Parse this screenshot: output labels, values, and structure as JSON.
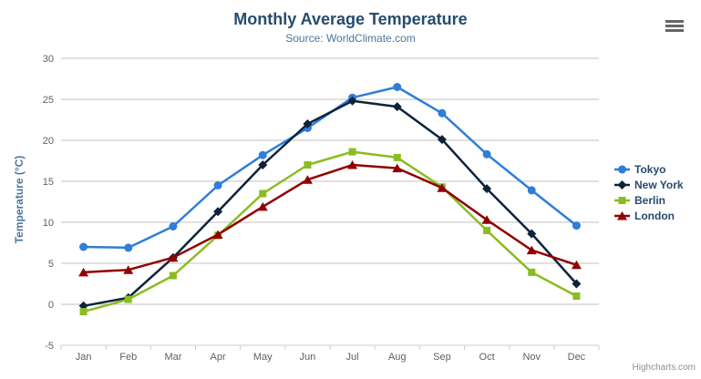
{
  "header": {
    "title": "Monthly Average Temperature",
    "subtitle": "Source: WorldClimate.com"
  },
  "credits": "Highcharts.com",
  "icons": {
    "context_menu": "hamburger"
  },
  "colors": {
    "background": "#ffffff",
    "title": "#274b6d",
    "subtitle": "#4d759e",
    "axis_title": "#4d759e",
    "tick_label": "#606060",
    "grid": "#c0c0c0",
    "axis_line": "#c0d0e0",
    "legend_text": "#274b6d",
    "credits": "#909090",
    "menu_icon": "#666666"
  },
  "chart_data": {
    "type": "line",
    "title": "Monthly Average Temperature",
    "subtitle": "Source: WorldClimate.com",
    "categories": [
      "Jan",
      "Feb",
      "Mar",
      "Apr",
      "May",
      "Jun",
      "Jul",
      "Aug",
      "Sep",
      "Oct",
      "Nov",
      "Dec"
    ],
    "xlabel": "",
    "ylabel": "Temperature (°C)",
    "ylim": [
      -5,
      30
    ],
    "ytick_step": 5,
    "grid": true,
    "legend_position": "right",
    "series": [
      {
        "name": "Tokyo",
        "color": "#2f7ed8",
        "marker": "circle",
        "values": [
          7.0,
          6.9,
          9.5,
          14.5,
          18.2,
          21.5,
          25.2,
          26.5,
          23.3,
          18.3,
          13.9,
          9.6
        ]
      },
      {
        "name": "New York",
        "color": "#0d233a",
        "marker": "diamond",
        "values": [
          -0.2,
          0.8,
          5.7,
          11.3,
          17.0,
          22.0,
          24.8,
          24.1,
          20.1,
          14.1,
          8.6,
          2.5
        ]
      },
      {
        "name": "Berlin",
        "color": "#8bbc21",
        "marker": "square",
        "values": [
          -0.9,
          0.6,
          3.5,
          8.4,
          13.5,
          17.0,
          18.6,
          17.9,
          14.3,
          9.0,
          3.9,
          1.0
        ]
      },
      {
        "name": "London",
        "color": "#910000",
        "marker": "triangle",
        "values": [
          3.9,
          4.2,
          5.7,
          8.5,
          11.9,
          15.2,
          17.0,
          16.6,
          14.2,
          10.3,
          6.6,
          4.8
        ]
      }
    ]
  }
}
